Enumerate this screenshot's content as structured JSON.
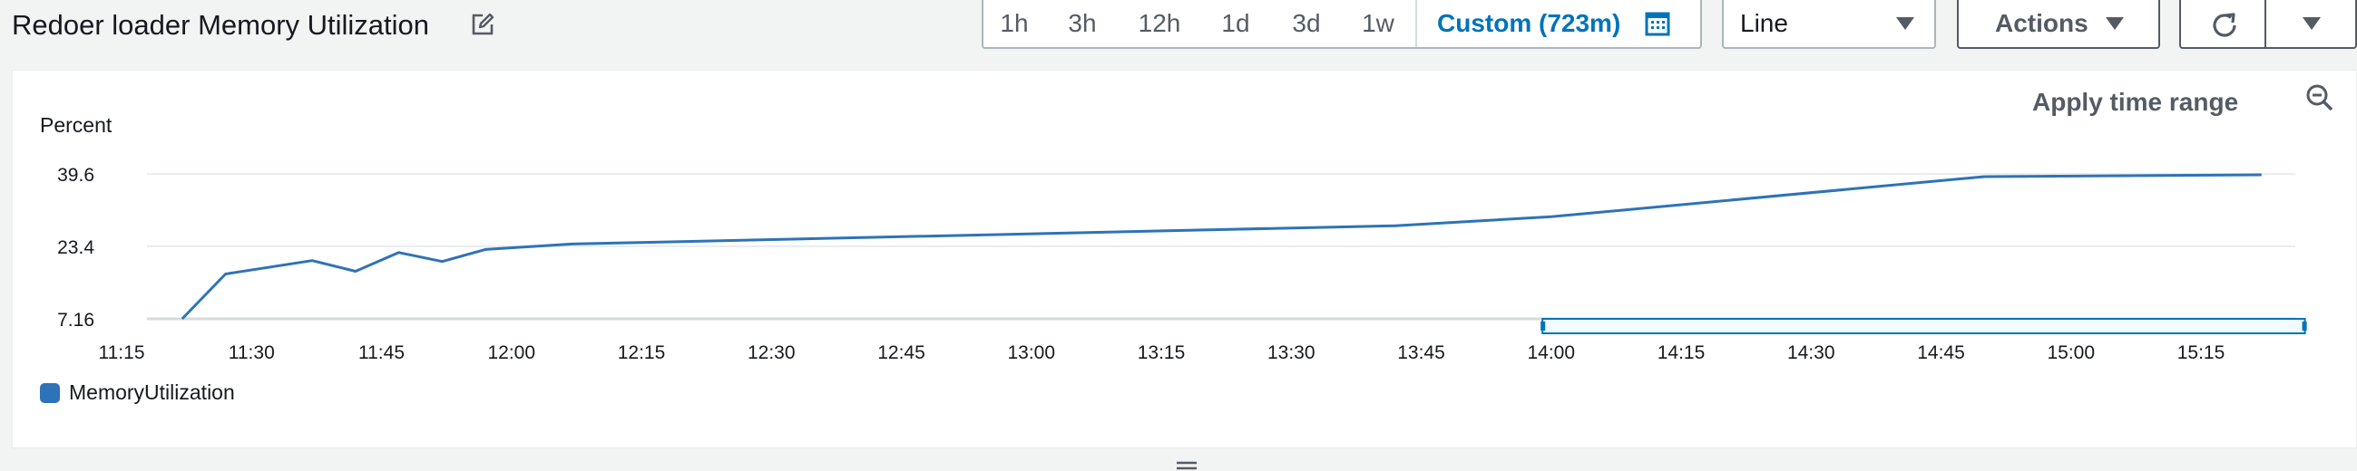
{
  "widget": {
    "title": "Redoer loader Memory Utilization"
  },
  "toolbar": {
    "ranges": [
      "1h",
      "3h",
      "12h",
      "1d",
      "3d",
      "1w"
    ],
    "custom_label": "Custom (723m)",
    "graph_type": "Line",
    "actions_label": "Actions"
  },
  "panel": {
    "apply_time_range": "Apply time range"
  },
  "colors": {
    "series": "#2e73b8",
    "accent": "#0073bb"
  },
  "icons": [
    "edit-icon",
    "calendar-icon",
    "refresh-icon",
    "zoom-out-icon",
    "drag-handle-icon"
  ],
  "chart_data": {
    "type": "line",
    "ylabel": "Percent",
    "yticks": [
      "7.16",
      "23.4",
      "39.6"
    ],
    "yticks_values": [
      7.16,
      23.4,
      39.6
    ],
    "ylim": [
      7.16,
      39.6
    ],
    "xticks": [
      "11:15",
      "11:30",
      "11:45",
      "12:00",
      "12:15",
      "12:30",
      "12:45",
      "13:00",
      "13:15",
      "13:30",
      "13:45",
      "14:00",
      "14:15",
      "14:30",
      "14:45",
      "15:00",
      "15:15"
    ],
    "xlim": [
      "11:15",
      "15:27"
    ],
    "grid": true,
    "legend_position": "bottom-left",
    "selection_range": [
      "13:59",
      "15:27"
    ],
    "series": [
      {
        "name": "MemoryUtilization",
        "x": [
          "11:22",
          "11:27",
          "11:37",
          "11:42",
          "11:47",
          "11:52",
          "11:57",
          "12:07",
          "13:42",
          "14:00",
          "14:50",
          "15:22"
        ],
        "values": [
          7.16,
          17.2,
          20.2,
          17.8,
          22.0,
          20.0,
          22.7,
          23.9,
          28.0,
          30.0,
          39.0,
          39.4
        ]
      }
    ]
  }
}
